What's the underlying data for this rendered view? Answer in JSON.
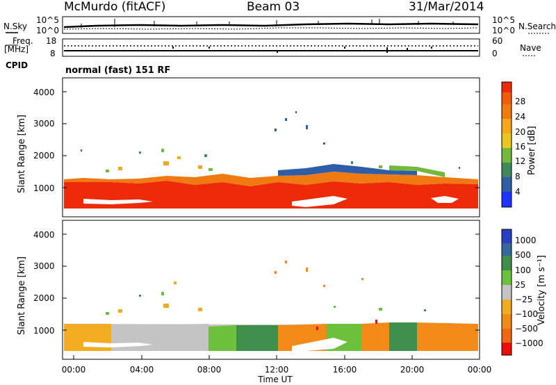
{
  "header": {
    "station": "McMurdo (fitACF)",
    "beam": "Beam 03",
    "date": "31/Mar/2014"
  },
  "noise_panel": {
    "left_label": "N.Sky",
    "right_label": "N.Search",
    "left_ticks": [
      "10^5",
      "10^0"
    ],
    "right_ticks": [
      "10^5",
      "10^0"
    ]
  },
  "freq_panel": {
    "left_label_top": "Freq.",
    "left_label_bottom": "[MHz]",
    "left_ticks": [
      "18",
      "8"
    ],
    "right_label": "Nave",
    "right_ticks": [
      "60",
      "0"
    ]
  },
  "cpid": {
    "label": "CPID",
    "text": "normal (fast) 151 RF"
  },
  "chart_data": [
    {
      "type": "heatmap",
      "panel": "power",
      "ylabel": "Slant Range [km]",
      "xlabel": "",
      "xlim": [
        0,
        24
      ],
      "ylim": [
        180,
        4600
      ],
      "yticks": [
        "1000",
        "2000",
        "3000",
        "4000"
      ],
      "colorbar_label": "Power [dB]",
      "colorbar_ticks": [
        "4",
        "8",
        "12",
        "16",
        "20",
        "24",
        "28"
      ],
      "colorbar_colors": [
        "#1e33ff",
        "#2f5ea8",
        "#3f8a5c",
        "#74b83b",
        "#e8c81e",
        "#f6a81c",
        "#f07a12",
        "#f25a0c",
        "#ee2b08",
        "#f10d05"
      ]
    },
    {
      "type": "heatmap",
      "panel": "velocity",
      "ylabel": "Slant Range [km]",
      "xlabel": "Time UT",
      "xlim": [
        0,
        24
      ],
      "ylim": [
        180,
        4600
      ],
      "yticks": [
        "1000",
        "2000",
        "3000",
        "4000"
      ],
      "xticks": [
        "00:00",
        "04:00",
        "08:00",
        "12:00",
        "16:00",
        "20:00",
        "00:00"
      ],
      "colorbar_label": "Velocity [m s⁻¹]",
      "colorbar_ticks": [
        "1000",
        "500",
        "100",
        "25",
        "−25",
        "−100",
        "−500",
        "−1000"
      ],
      "colorbar_colors": [
        "#2a3fc2",
        "#36679a",
        "#3e8e4c",
        "#6cc13a",
        "#c4c4c4",
        "#f2ac22",
        "#f28a18",
        "#f06814",
        "#f24a12",
        "#ee0d08"
      ]
    }
  ]
}
